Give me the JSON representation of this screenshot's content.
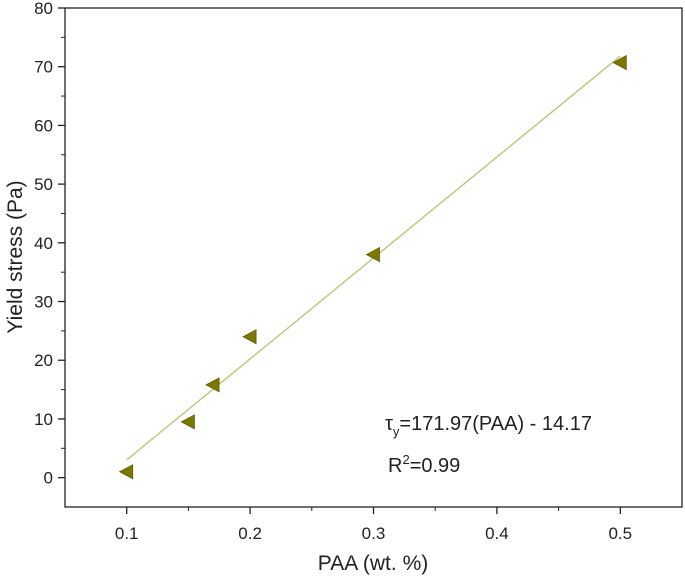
{
  "chart_data": {
    "type": "scatter",
    "xlabel": "PAA (wt. %)",
    "ylabel": "Yield stress (Pa)",
    "xlim": [
      0.05,
      0.55
    ],
    "ylim": [
      -5,
      80
    ],
    "xticks": [
      0.1,
      0.2,
      0.3,
      0.4,
      0.5
    ],
    "xtick_labels": [
      "0.1",
      "0.2",
      "0.3",
      "0.4",
      "0.5"
    ],
    "yticks": [
      0,
      10,
      20,
      30,
      40,
      50,
      60,
      70,
      80
    ],
    "ytick_labels": [
      "0",
      "10",
      "20",
      "30",
      "40",
      "50",
      "60",
      "70",
      "80"
    ],
    "grid": false,
    "legend": "none",
    "marker": "left-triangle",
    "series": [
      {
        "color": "#7a7a00",
        "points": [
          {
            "x": 0.1,
            "y": 1.0
          },
          {
            "x": 0.15,
            "y": 9.5
          },
          {
            "x": 0.17,
            "y": 15.8
          },
          {
            "x": 0.2,
            "y": 24.0
          },
          {
            "x": 0.3,
            "y": 38.0
          },
          {
            "x": 0.5,
            "y": 70.7
          }
        ]
      }
    ],
    "fit": {
      "color": "#b5c97a",
      "slope": 171.97,
      "intercept": -14.17,
      "x_range": [
        0.1,
        0.5
      ]
    },
    "annotations": {
      "equation_symbol": "τ",
      "equation_subscript": "y",
      "equation_rest": "=171.97(PAA) - 14.17",
      "r2_prefix": "R",
      "r2_superscript": "2",
      "r2_rest": "=0.99"
    }
  }
}
